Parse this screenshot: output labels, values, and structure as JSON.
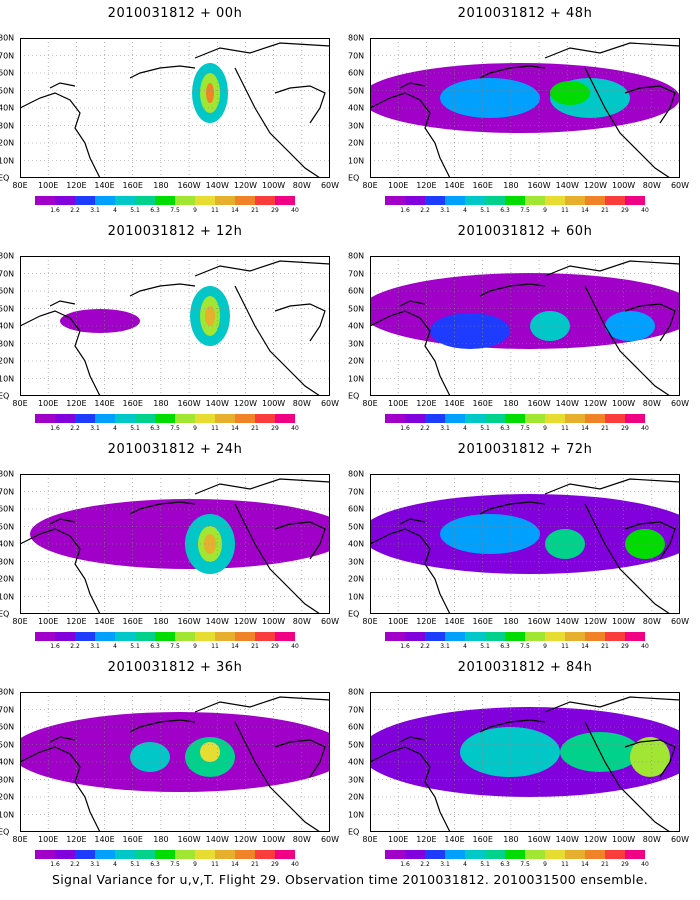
{
  "panels": [
    {
      "title": "2010031812 + 00h"
    },
    {
      "title": "2010031812 + 48h"
    },
    {
      "title": "2010031812 + 12h"
    },
    {
      "title": "2010031812 + 60h"
    },
    {
      "title": "2010031812 + 24h"
    },
    {
      "title": "2010031812 + 72h"
    },
    {
      "title": "2010031812 + 36h"
    },
    {
      "title": "2010031812 + 84h"
    }
  ],
  "x_ticks": [
    "80E",
    "100E",
    "120E",
    "140E",
    "160E",
    "180",
    "160W",
    "140W",
    "120W",
    "100W",
    "80W",
    "60W"
  ],
  "y_ticks": [
    "EQ",
    "10N",
    "20N",
    "30N",
    "40N",
    "50N",
    "60N",
    "70N",
    "80N"
  ],
  "colorbar": {
    "labels": [
      "1.6",
      "2.2",
      "3.1",
      "4",
      "5.1",
      "6.3",
      "7.5",
      "9",
      "11",
      "14",
      "21",
      "29",
      "40"
    ],
    "colors": [
      "#a000c8",
      "#8200dc",
      "#1e3cff",
      "#00a0ff",
      "#00c8c8",
      "#00d28c",
      "#00dc00",
      "#a0e632",
      "#e6dc32",
      "#e6af2d",
      "#f08228",
      "#fa3c3c",
      "#f00082"
    ]
  },
  "footer": "Signal Variance for u,v,T. Flight 29. Observation time 2010031812. 2010031500 ensemble."
}
